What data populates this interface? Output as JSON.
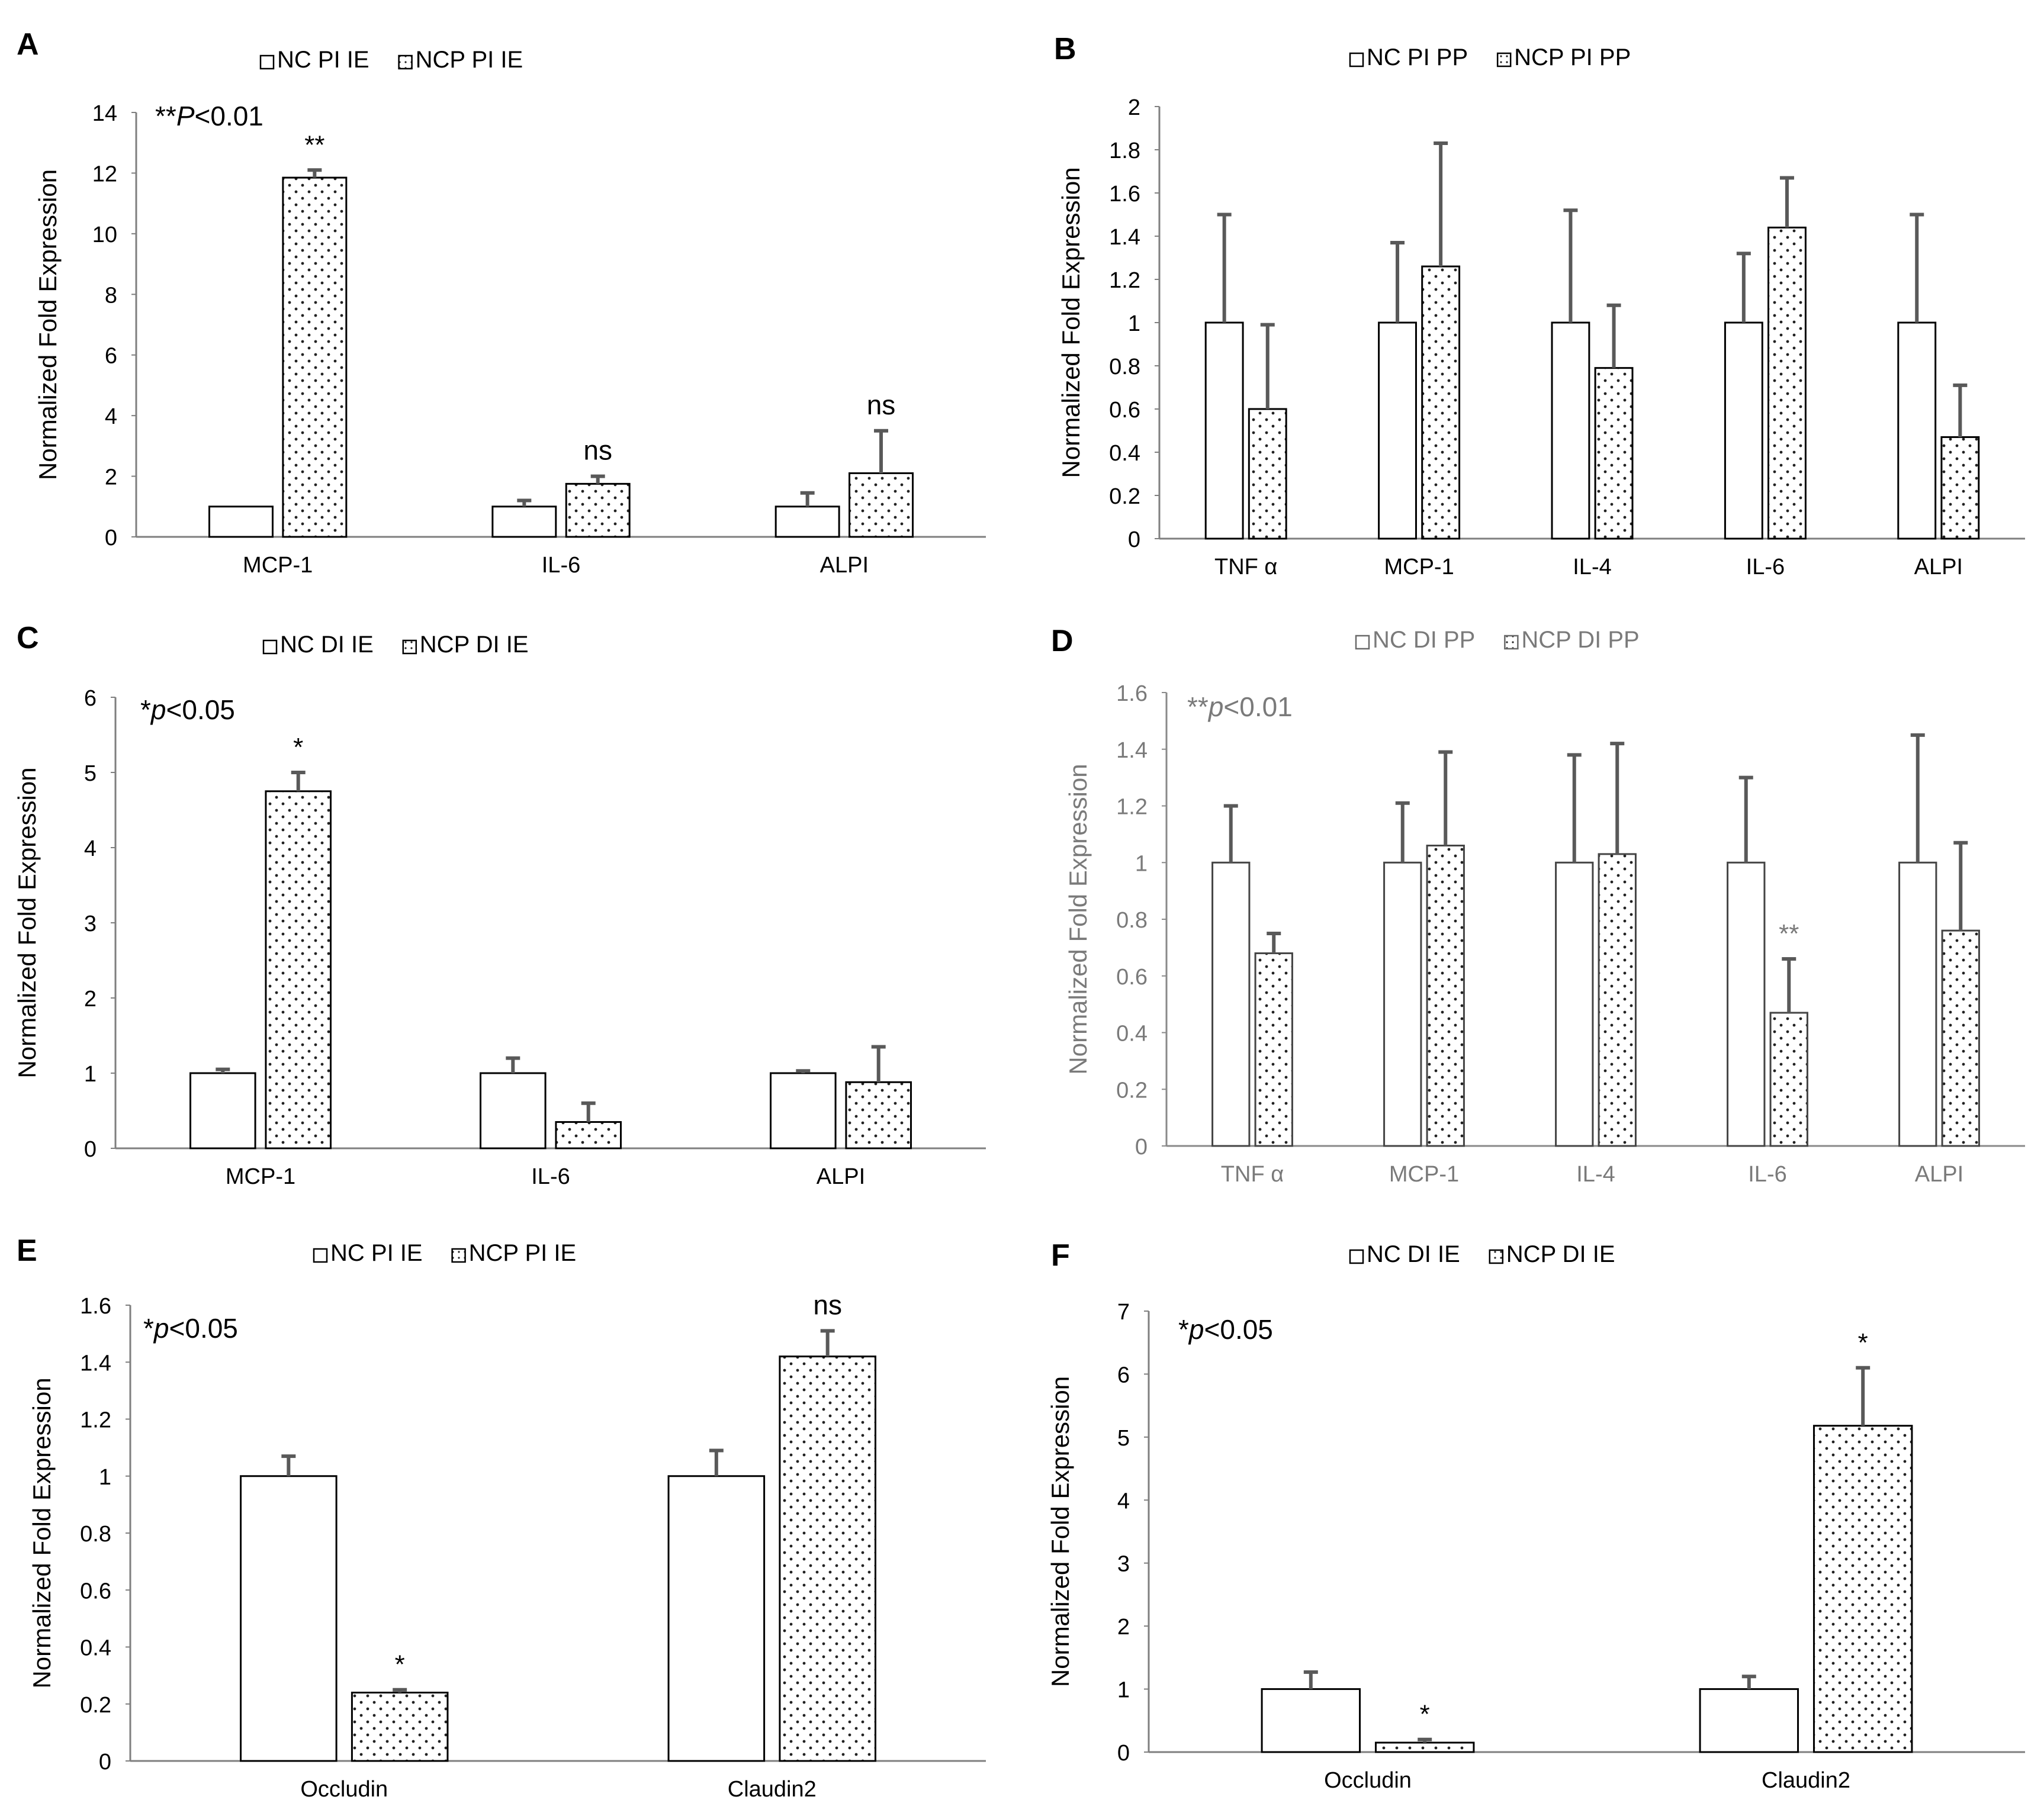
{
  "panels": [
    {
      "letter": "A",
      "significance_note": "**P<0.01",
      "ylabel": "Normalized  Fold Expression",
      "legend": [
        "NC PI IE",
        "NCP PI IE"
      ],
      "faded": false,
      "chart_data": {
        "type": "bar",
        "categories": [
          "MCP-1",
          "IL-6",
          "ALPI"
        ],
        "series": [
          {
            "name": "NC PI IE",
            "pattern": "open",
            "values": [
              1,
              1,
              1
            ],
            "errors": [
              0,
              0.2,
              0.45
            ]
          },
          {
            "name": "NCP PI IE",
            "pattern": "dotted",
            "values": [
              11.85,
              1.75,
              2.1
            ],
            "errors": [
              0.25,
              0.25,
              1.4
            ]
          }
        ],
        "annotations": [
          {
            "category": 0,
            "series": 1,
            "text": "**"
          },
          {
            "category": 1,
            "series": 1,
            "text": "ns"
          },
          {
            "category": 2,
            "series": 1,
            "text": "ns"
          }
        ],
        "ylim": [
          0,
          14
        ],
        "yticks": [
          0,
          2,
          4,
          6,
          8,
          10,
          12,
          14
        ],
        "legend_position": "top-center",
        "grid": false
      }
    },
    {
      "letter": "B",
      "significance_note": "",
      "ylabel": "Normalized  Fold Expression",
      "legend": [
        "NC PI  PP",
        "NCP PI PP"
      ],
      "faded": false,
      "chart_data": {
        "type": "bar",
        "categories": [
          "TNF α",
          "MCP-1",
          "IL-4",
          "IL-6",
          "ALPI"
        ],
        "series": [
          {
            "name": "NC PI  PP",
            "pattern": "open",
            "values": [
              1,
              1,
              1,
              1,
              1
            ],
            "errors": [
              0.5,
              0.37,
              0.52,
              0.32,
              0.5
            ]
          },
          {
            "name": "NCP PI PP",
            "pattern": "dotted",
            "values": [
              0.6,
              1.26,
              0.79,
              1.44,
              0.47
            ],
            "errors": [
              0.39,
              0.57,
              0.29,
              0.23,
              0.24
            ]
          }
        ],
        "annotations": [],
        "ylim": [
          0,
          2
        ],
        "yticks": [
          0,
          0.2,
          0.4,
          0.6,
          0.8,
          1,
          1.2,
          1.4,
          1.6,
          1.8,
          2
        ],
        "legend_position": "top-center",
        "grid": false
      }
    },
    {
      "letter": "C",
      "significance_note": "*p<0.05",
      "ylabel": "Normalized  Fold Expression",
      "legend": [
        "NC DI IE",
        "NCP DI IE"
      ],
      "faded": false,
      "chart_data": {
        "type": "bar",
        "categories": [
          "MCP-1",
          "IL-6",
          "ALPI"
        ],
        "series": [
          {
            "name": "NC DI IE",
            "pattern": "open",
            "values": [
              1,
              1,
              1
            ],
            "errors": [
              0.05,
              0.2,
              0.03
            ]
          },
          {
            "name": "NCP DI IE",
            "pattern": "dotted",
            "values": [
              4.75,
              0.35,
              0.88
            ],
            "errors": [
              0.25,
              0.25,
              0.47
            ]
          }
        ],
        "annotations": [
          {
            "category": 0,
            "series": 1,
            "text": "*"
          }
        ],
        "ylim": [
          0,
          6
        ],
        "yticks": [
          0,
          1,
          2,
          3,
          4,
          5,
          6
        ],
        "legend_position": "top-center",
        "grid": false
      }
    },
    {
      "letter": "D",
      "significance_note": "**p<0.01",
      "ylabel": "Normalized Fold Expression",
      "legend": [
        "NC DI PP",
        "NCP DI PP"
      ],
      "faded": true,
      "chart_data": {
        "type": "bar",
        "categories": [
          "TNF α",
          "MCP-1",
          "IL-4",
          "IL-6",
          "ALPI"
        ],
        "series": [
          {
            "name": "NC DI PP",
            "pattern": "open",
            "values": [
              1,
              1,
              1,
              1,
              1
            ],
            "errors": [
              0.2,
              0.21,
              0.38,
              0.3,
              0.45
            ]
          },
          {
            "name": "NCP DI PP",
            "pattern": "dotted",
            "values": [
              0.68,
              1.06,
              1.03,
              0.47,
              0.76
            ],
            "errors": [
              0.07,
              0.33,
              0.39,
              0.19,
              0.31
            ]
          }
        ],
        "annotations": [
          {
            "category": 3,
            "series": 1,
            "text": "**"
          }
        ],
        "ylim": [
          0,
          1.6
        ],
        "yticks": [
          0,
          0.2,
          0.4,
          0.6,
          0.8,
          1,
          1.2,
          1.4,
          1.6
        ],
        "legend_position": "top-center",
        "grid": false
      }
    },
    {
      "letter": "E",
      "significance_note": "*p<0.05",
      "ylabel": "Normalized  Fold Expression",
      "legend": [
        "NC PI IE",
        "NCP PI IE"
      ],
      "faded": false,
      "chart_data": {
        "type": "bar",
        "categories": [
          "Occludin",
          "Claudin2"
        ],
        "series": [
          {
            "name": "NC PI IE",
            "pattern": "open",
            "values": [
              1,
              1
            ],
            "errors": [
              0.07,
              0.09
            ]
          },
          {
            "name": "NCP PI IE",
            "pattern": "dotted",
            "values": [
              0.24,
              1.42
            ],
            "errors": [
              0.01,
              0.09
            ]
          }
        ],
        "annotations": [
          {
            "category": 0,
            "series": 1,
            "text": "*"
          },
          {
            "category": 1,
            "series": 1,
            "text": "ns"
          }
        ],
        "ylim": [
          0,
          1.6
        ],
        "yticks": [
          0,
          0.2,
          0.4,
          0.6,
          0.8,
          1,
          1.2,
          1.4,
          1.6
        ],
        "legend_position": "top-center",
        "grid": false
      }
    },
    {
      "letter": "F",
      "significance_note": "*p<0.05",
      "ylabel": "Normalized Fold Expression",
      "legend": [
        "NC DI IE",
        "NCP DI IE"
      ],
      "faded": false,
      "chart_data": {
        "type": "bar",
        "categories": [
          "Occludin",
          "Claudin2"
        ],
        "series": [
          {
            "name": "NC DI IE",
            "pattern": "open",
            "values": [
              1,
              1
            ],
            "errors": [
              0.27,
              0.2
            ]
          },
          {
            "name": "NCP DI IE",
            "pattern": "dotted",
            "values": [
              0.15,
              5.18
            ],
            "errors": [
              0.05,
              0.92
            ]
          }
        ],
        "annotations": [
          {
            "category": 0,
            "series": 1,
            "text": "*"
          },
          {
            "category": 1,
            "series": 1,
            "text": "*"
          }
        ],
        "ylim": [
          0,
          7
        ],
        "yticks": [
          0,
          1,
          2,
          3,
          4,
          5,
          6,
          7
        ],
        "legend_position": "top-center",
        "grid": false
      }
    }
  ]
}
